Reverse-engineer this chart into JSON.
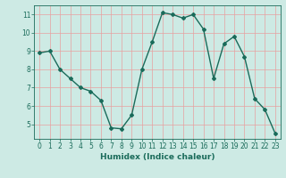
{
  "x": [
    0,
    1,
    2,
    3,
    4,
    5,
    6,
    7,
    8,
    9,
    10,
    11,
    12,
    13,
    14,
    15,
    16,
    17,
    18,
    19,
    20,
    21,
    22,
    23
  ],
  "y": [
    8.9,
    9.0,
    8.0,
    7.5,
    7.0,
    6.8,
    6.3,
    4.8,
    4.75,
    5.5,
    8.0,
    9.5,
    11.1,
    11.0,
    10.8,
    11.0,
    10.2,
    7.5,
    9.4,
    9.8,
    8.7,
    6.4,
    5.8,
    4.5
  ],
  "line_color": "#1a6b5a",
  "marker": "D",
  "marker_size": 2.0,
  "bg_color": "#cdeae4",
  "grid_color": "#e8a0a0",
  "xlabel": "Humidex (Indice chaleur)",
  "ylim": [
    4.2,
    11.5
  ],
  "xlim": [
    -0.5,
    23.5
  ],
  "yticks": [
    5,
    6,
    7,
    8,
    9,
    10,
    11
  ],
  "xticks": [
    0,
    1,
    2,
    3,
    4,
    5,
    6,
    7,
    8,
    9,
    10,
    11,
    12,
    13,
    14,
    15,
    16,
    17,
    18,
    19,
    20,
    21,
    22,
    23
  ],
  "xlabel_fontsize": 6.5,
  "tick_fontsize": 5.5,
  "linewidth": 1.0
}
